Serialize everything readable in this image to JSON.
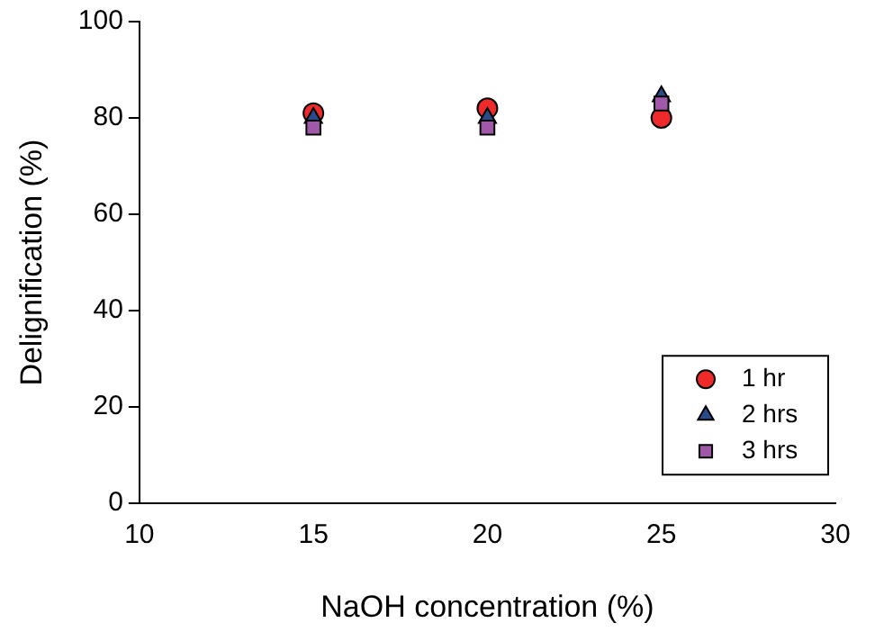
{
  "chart_data": {
    "type": "scatter",
    "xlabel": "NaOH concentration (%)",
    "ylabel": "Delignification (%)",
    "x": [
      15,
      20,
      25
    ],
    "series": [
      {
        "name": "1 hr",
        "color": "#ee2a2a",
        "marker": "circle",
        "values": [
          81,
          82,
          80
        ]
      },
      {
        "name": "2 hrs",
        "color": "#2a4a8a",
        "marker": "triangle",
        "values": [
          80,
          80,
          84.5
        ]
      },
      {
        "name": "3 hrs",
        "color": "#a058a8",
        "marker": "square",
        "values": [
          78,
          78,
          83
        ]
      }
    ],
    "xlim": [
      10,
      30
    ],
    "xticks": [
      10,
      15,
      20,
      25,
      30
    ],
    "ylim": [
      0,
      100
    ],
    "yticks": [
      0,
      20,
      40,
      60,
      80,
      100
    ],
    "grid": false,
    "legend": "bottom right"
  }
}
